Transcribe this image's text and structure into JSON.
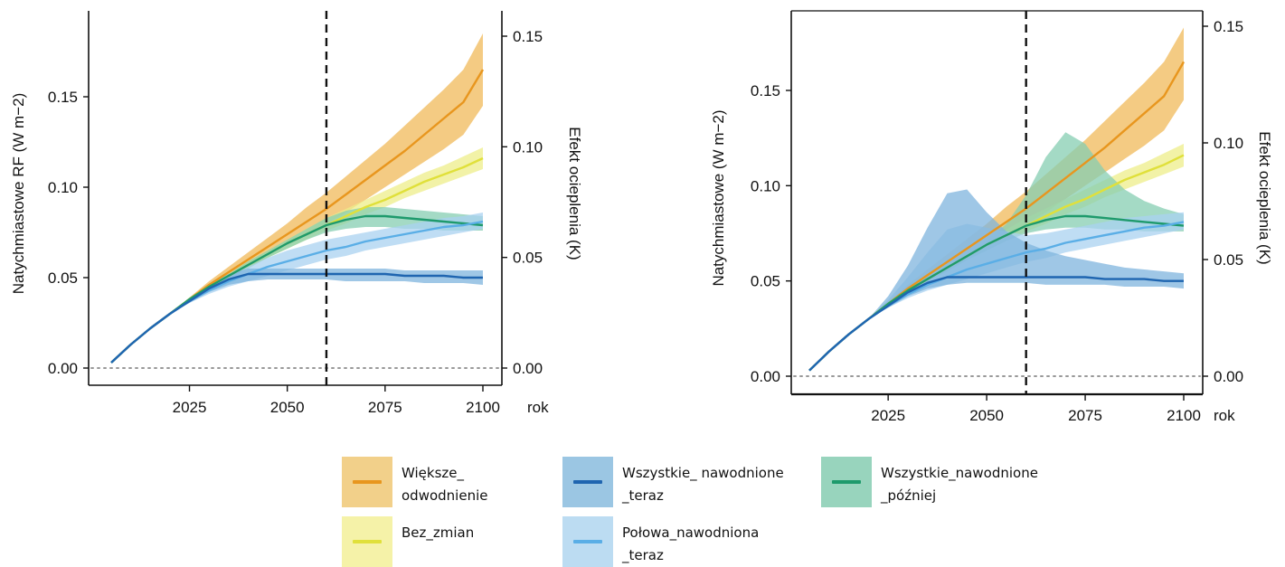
{
  "chart_data": [
    {
      "type": "line",
      "xlabel": "rok",
      "ylabel": "Natychmiastowe RF (W m−2)",
      "ylabel_right": "Efekt ocieplenia (K)",
      "xlim": [
        2005,
        2100
      ],
      "ylim": [
        0.0,
        0.18
      ],
      "ylim_right": [
        0.0,
        0.146
      ],
      "xticks": [
        "2025",
        "2050",
        "2075",
        "2100"
      ],
      "yticks": [
        "0.00",
        "0.05",
        "0.10",
        "0.15"
      ],
      "yticks_right": [
        "0.00",
        "0.05",
        "0.10",
        "0.15"
      ],
      "vline_x": 2060,
      "hline_y": 0.0,
      "x": [
        2005,
        2010,
        2015,
        2020,
        2025,
        2030,
        2035,
        2040,
        2045,
        2050,
        2055,
        2060,
        2065,
        2070,
        2075,
        2080,
        2085,
        2090,
        2095,
        2100
      ],
      "series": [
        {
          "key": "wieksze",
          "values": [
            0.003,
            0.013,
            0.022,
            0.03,
            0.038,
            0.046,
            0.053,
            0.06,
            0.067,
            0.074,
            0.081,
            0.088,
            0.096,
            0.104,
            0.112,
            0.12,
            0.129,
            0.138,
            0.147,
            0.165
          ],
          "lower": [
            0.003,
            0.013,
            0.022,
            0.03,
            0.037,
            0.044,
            0.05,
            0.056,
            0.062,
            0.068,
            0.074,
            0.08,
            0.086,
            0.093,
            0.1,
            0.107,
            0.114,
            0.121,
            0.129,
            0.145
          ],
          "upper": [
            0.003,
            0.013,
            0.022,
            0.03,
            0.039,
            0.048,
            0.056,
            0.064,
            0.072,
            0.08,
            0.089,
            0.097,
            0.106,
            0.115,
            0.124,
            0.134,
            0.144,
            0.154,
            0.165,
            0.185
          ]
        },
        {
          "key": "bez",
          "values": [
            0.003,
            0.013,
            0.022,
            0.03,
            0.038,
            0.045,
            0.051,
            0.057,
            0.063,
            0.069,
            0.074,
            0.079,
            0.084,
            0.089,
            0.093,
            0.098,
            0.103,
            0.107,
            0.111,
            0.116
          ],
          "lower": [
            0.003,
            0.013,
            0.022,
            0.03,
            0.037,
            0.044,
            0.05,
            0.055,
            0.061,
            0.066,
            0.071,
            0.076,
            0.08,
            0.085,
            0.089,
            0.094,
            0.098,
            0.102,
            0.106,
            0.11
          ],
          "upper": [
            0.003,
            0.013,
            0.022,
            0.03,
            0.039,
            0.046,
            0.052,
            0.059,
            0.065,
            0.071,
            0.077,
            0.083,
            0.088,
            0.093,
            0.098,
            0.103,
            0.108,
            0.112,
            0.117,
            0.122
          ]
        },
        {
          "key": "polowa",
          "values": [
            0.003,
            0.013,
            0.022,
            0.03,
            0.037,
            0.043,
            0.048,
            0.052,
            0.056,
            0.059,
            0.062,
            0.065,
            0.067,
            0.07,
            0.072,
            0.074,
            0.076,
            0.078,
            0.079,
            0.081
          ],
          "lower": [
            0.003,
            0.013,
            0.022,
            0.03,
            0.036,
            0.041,
            0.045,
            0.048,
            0.051,
            0.054,
            0.057,
            0.06,
            0.062,
            0.065,
            0.067,
            0.069,
            0.071,
            0.073,
            0.075,
            0.077
          ],
          "upper": [
            0.003,
            0.013,
            0.022,
            0.03,
            0.038,
            0.045,
            0.051,
            0.056,
            0.061,
            0.065,
            0.068,
            0.071,
            0.073,
            0.075,
            0.077,
            0.079,
            0.081,
            0.083,
            0.084,
            0.086
          ]
        },
        {
          "key": "teraz",
          "values": [
            0.003,
            0.013,
            0.022,
            0.03,
            0.037,
            0.044,
            0.049,
            0.052,
            0.052,
            0.052,
            0.052,
            0.052,
            0.052,
            0.052,
            0.052,
            0.051,
            0.051,
            0.051,
            0.05,
            0.05
          ],
          "lower": [
            0.003,
            0.013,
            0.022,
            0.03,
            0.036,
            0.042,
            0.046,
            0.048,
            0.049,
            0.049,
            0.049,
            0.049,
            0.048,
            0.048,
            0.048,
            0.048,
            0.047,
            0.047,
            0.047,
            0.046
          ],
          "upper": [
            0.003,
            0.013,
            0.022,
            0.03,
            0.038,
            0.046,
            0.052,
            0.055,
            0.055,
            0.055,
            0.055,
            0.055,
            0.055,
            0.055,
            0.055,
            0.054,
            0.054,
            0.054,
            0.054,
            0.054
          ]
        },
        {
          "key": "pozniej",
          "values": [
            0.003,
            0.013,
            0.022,
            0.03,
            0.038,
            0.045,
            0.051,
            0.057,
            0.063,
            0.069,
            0.074,
            0.079,
            0.082,
            0.084,
            0.084,
            0.083,
            0.082,
            0.081,
            0.08,
            0.079
          ],
          "lower": [
            0.003,
            0.013,
            0.022,
            0.03,
            0.037,
            0.044,
            0.05,
            0.055,
            0.061,
            0.066,
            0.071,
            0.075,
            0.077,
            0.078,
            0.078,
            0.077,
            0.077,
            0.076,
            0.076,
            0.076
          ],
          "upper": [
            0.003,
            0.013,
            0.022,
            0.03,
            0.039,
            0.046,
            0.052,
            0.059,
            0.065,
            0.071,
            0.077,
            0.083,
            0.087,
            0.089,
            0.089,
            0.088,
            0.087,
            0.086,
            0.085,
            0.084
          ]
        }
      ]
    },
    {
      "type": "line",
      "xlabel": "rok",
      "ylabel": "Natychmiastowe (W m−2)",
      "ylabel_right": "Efekt ocieplenia (K)",
      "xlim": [
        2005,
        2100
      ],
      "ylim": [
        0.0,
        0.18
      ],
      "ylim_right": [
        0.0,
        0.146
      ],
      "xticks": [
        "2025",
        "2050",
        "2075",
        "2100"
      ],
      "yticks": [
        "0.00",
        "0.05",
        "0.10",
        "0.15"
      ],
      "yticks_right": [
        "0.00",
        "0.05",
        "0.10",
        "0.15"
      ],
      "vline_x": 2060,
      "hline_y": 0.0,
      "x": [
        2005,
        2010,
        2015,
        2020,
        2025,
        2030,
        2035,
        2040,
        2045,
        2050,
        2055,
        2060,
        2065,
        2070,
        2075,
        2080,
        2085,
        2090,
        2095,
        2100
      ],
      "series": [
        {
          "key": "wieksze",
          "values": [
            0.003,
            0.013,
            0.022,
            0.03,
            0.038,
            0.046,
            0.053,
            0.06,
            0.067,
            0.074,
            0.081,
            0.088,
            0.096,
            0.104,
            0.112,
            0.12,
            0.129,
            0.138,
            0.147,
            0.165
          ],
          "lower": [
            0.003,
            0.013,
            0.022,
            0.03,
            0.037,
            0.044,
            0.05,
            0.056,
            0.062,
            0.068,
            0.074,
            0.08,
            0.086,
            0.093,
            0.1,
            0.107,
            0.114,
            0.121,
            0.129,
            0.145
          ],
          "upper": [
            0.003,
            0.013,
            0.022,
            0.03,
            0.039,
            0.048,
            0.056,
            0.064,
            0.072,
            0.08,
            0.089,
            0.097,
            0.106,
            0.115,
            0.124,
            0.134,
            0.144,
            0.154,
            0.165,
            0.183
          ]
        },
        {
          "key": "bez",
          "values": [
            0.003,
            0.013,
            0.022,
            0.03,
            0.038,
            0.045,
            0.051,
            0.057,
            0.063,
            0.069,
            0.074,
            0.079,
            0.084,
            0.089,
            0.093,
            0.098,
            0.103,
            0.107,
            0.111,
            0.116
          ],
          "lower": [
            0.003,
            0.013,
            0.022,
            0.03,
            0.037,
            0.044,
            0.05,
            0.055,
            0.061,
            0.066,
            0.071,
            0.076,
            0.08,
            0.085,
            0.089,
            0.094,
            0.098,
            0.102,
            0.106,
            0.11
          ],
          "upper": [
            0.003,
            0.013,
            0.022,
            0.03,
            0.039,
            0.046,
            0.052,
            0.059,
            0.065,
            0.071,
            0.077,
            0.083,
            0.088,
            0.093,
            0.098,
            0.103,
            0.108,
            0.112,
            0.117,
            0.122
          ]
        },
        {
          "key": "polowa",
          "values": [
            0.003,
            0.013,
            0.022,
            0.03,
            0.037,
            0.043,
            0.048,
            0.052,
            0.056,
            0.059,
            0.062,
            0.065,
            0.067,
            0.07,
            0.072,
            0.074,
            0.076,
            0.078,
            0.079,
            0.081
          ],
          "lower": [
            0.003,
            0.013,
            0.022,
            0.03,
            0.036,
            0.041,
            0.045,
            0.048,
            0.051,
            0.054,
            0.057,
            0.06,
            0.062,
            0.065,
            0.067,
            0.069,
            0.071,
            0.073,
            0.075,
            0.077
          ],
          "upper": [
            0.003,
            0.013,
            0.022,
            0.03,
            0.04,
            0.052,
            0.065,
            0.077,
            0.08,
            0.078,
            0.076,
            0.074,
            0.075,
            0.077,
            0.079,
            0.081,
            0.083,
            0.084,
            0.085,
            0.086
          ]
        },
        {
          "key": "teraz",
          "values": [
            0.003,
            0.013,
            0.022,
            0.03,
            0.037,
            0.044,
            0.049,
            0.052,
            0.052,
            0.052,
            0.052,
            0.052,
            0.052,
            0.052,
            0.052,
            0.051,
            0.051,
            0.051,
            0.05,
            0.05
          ],
          "lower": [
            0.003,
            0.013,
            0.022,
            0.03,
            0.036,
            0.042,
            0.046,
            0.048,
            0.049,
            0.049,
            0.049,
            0.049,
            0.048,
            0.048,
            0.048,
            0.048,
            0.047,
            0.047,
            0.047,
            0.046
          ],
          "upper": [
            0.003,
            0.013,
            0.022,
            0.03,
            0.042,
            0.058,
            0.078,
            0.096,
            0.098,
            0.086,
            0.076,
            0.07,
            0.066,
            0.063,
            0.061,
            0.059,
            0.057,
            0.056,
            0.055,
            0.054
          ]
        },
        {
          "key": "pozniej",
          "values": [
            0.003,
            0.013,
            0.022,
            0.03,
            0.038,
            0.045,
            0.051,
            0.057,
            0.063,
            0.069,
            0.074,
            0.079,
            0.082,
            0.084,
            0.084,
            0.083,
            0.082,
            0.081,
            0.08,
            0.079
          ],
          "lower": [
            0.003,
            0.013,
            0.022,
            0.03,
            0.037,
            0.044,
            0.05,
            0.055,
            0.061,
            0.066,
            0.071,
            0.075,
            0.077,
            0.078,
            0.078,
            0.077,
            0.077,
            0.076,
            0.076,
            0.076
          ],
          "upper": [
            0.003,
            0.013,
            0.022,
            0.03,
            0.039,
            0.046,
            0.052,
            0.059,
            0.065,
            0.071,
            0.08,
            0.095,
            0.115,
            0.128,
            0.122,
            0.108,
            0.098,
            0.092,
            0.088,
            0.085
          ]
        }
      ]
    }
  ],
  "styles": {
    "wieksze": {
      "line": "#e8961e",
      "band": "#f0b95a"
    },
    "bez": {
      "line": "#e0e03a",
      "band": "#eded8a"
    },
    "polowa": {
      "line": "#5aaee6",
      "band": "#a9d2f0"
    },
    "teraz": {
      "line": "#1f65b0",
      "band": "#7fb4dd"
    },
    "pozniej": {
      "line": "#1e9a6c",
      "band": "#85cdb1"
    },
    "vline_color": "#111111",
    "hline_color": "#999999"
  },
  "legend": [
    {
      "key": "wieksze",
      "label": "Większe_\nodwodnienie",
      "swatch": "#f2d08a",
      "line": "#e8961e"
    },
    {
      "key": "bez",
      "label": "Bez_zmian",
      "swatch": "#f5f2a8",
      "line": "#e0e03a"
    },
    {
      "key": "teraz",
      "label": "Wszystkie_ nawodnione\n_teraz",
      "swatch": "#9bc6e3",
      "line": "#1f65b0"
    },
    {
      "key": "polowa",
      "label": "Połowa_nawodniona\n_teraz",
      "swatch": "#bcdcf2",
      "line": "#5aaee6"
    },
    {
      "key": "pozniej",
      "label": "Wszystkie_nawodnione\n_później",
      "swatch": "#98d4bd",
      "line": "#1e9a6c"
    }
  ]
}
